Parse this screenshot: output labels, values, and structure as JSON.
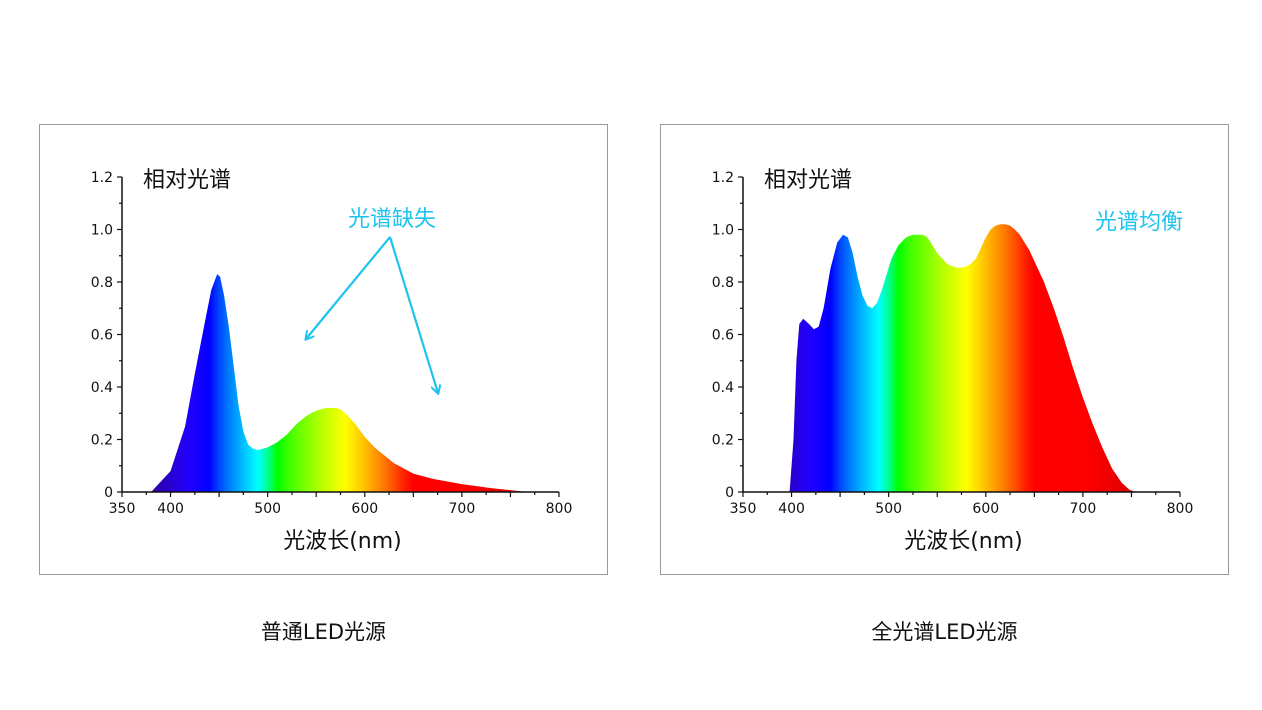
{
  "colors": {
    "annotation": "#1ec3ee",
    "axis": "#111111",
    "frame": "#9a9a9a"
  },
  "chart_data": [
    {
      "type": "area",
      "ylabel": "相对光谱",
      "xlabel": "光波长(nm)",
      "caption": "普通LED光源",
      "annotation": "光谱缺失",
      "annotation_arrows": 2,
      "xlim": [
        350,
        800
      ],
      "ylim": [
        0,
        1.2
      ],
      "xticks": [
        "350",
        "400",
        "500",
        "600",
        "700",
        "800"
      ],
      "xtick_values": [
        350,
        400,
        500,
        600,
        700,
        800
      ],
      "yticks": [
        "0",
        "0.2",
        "0.4",
        "0.6",
        "0.8",
        "1.0",
        "1.2"
      ],
      "ytick_values": [
        0,
        0.2,
        0.4,
        0.6,
        0.8,
        1.0,
        1.2
      ],
      "fill": "wavelength-colour gradient",
      "x": [
        380,
        400,
        415,
        425,
        435,
        442,
        448,
        451,
        455,
        460,
        465,
        470,
        475,
        480,
        485,
        490,
        495,
        500,
        510,
        520,
        530,
        540,
        550,
        560,
        565,
        570,
        575,
        580,
        590,
        600,
        610,
        620,
        630,
        650,
        670,
        700,
        730,
        760,
        775
      ],
      "values": [
        0.0,
        0.08,
        0.25,
        0.45,
        0.64,
        0.77,
        0.83,
        0.82,
        0.75,
        0.63,
        0.48,
        0.33,
        0.23,
        0.18,
        0.165,
        0.16,
        0.165,
        0.17,
        0.19,
        0.22,
        0.26,
        0.29,
        0.31,
        0.32,
        0.32,
        0.32,
        0.315,
        0.3,
        0.26,
        0.21,
        0.17,
        0.14,
        0.11,
        0.07,
        0.05,
        0.03,
        0.015,
        0.003,
        0.0
      ]
    },
    {
      "type": "area",
      "ylabel": "相对光谱",
      "xlabel": "光波长(nm)",
      "caption": "全光谱LED光源",
      "annotation": "光谱均衡",
      "xlim": [
        350,
        800
      ],
      "ylim": [
        0,
        1.2
      ],
      "xticks": [
        "350",
        "400",
        "500",
        "600",
        "700",
        "800"
      ],
      "xtick_values": [
        350,
        400,
        500,
        600,
        700,
        800
      ],
      "yticks": [
        "0",
        "0.2",
        "0.4",
        "0.6",
        "0.8",
        "1.0",
        "1.2"
      ],
      "ytick_values": [
        0,
        0.2,
        0.4,
        0.6,
        0.8,
        1.0,
        1.2
      ],
      "fill": "wavelength-colour gradient",
      "x": [
        398,
        402,
        405,
        408,
        412,
        418,
        423,
        428,
        433,
        440,
        447,
        453,
        458,
        463,
        468,
        473,
        478,
        483,
        488,
        493,
        498,
        503,
        510,
        518,
        525,
        530,
        535,
        540,
        545,
        550,
        555,
        560,
        565,
        570,
        575,
        580,
        585,
        590,
        595,
        600,
        605,
        610,
        615,
        620,
        625,
        630,
        635,
        640,
        645,
        650,
        660,
        670,
        680,
        690,
        700,
        710,
        720,
        730,
        740,
        748,
        755
      ],
      "values": [
        0.0,
        0.2,
        0.5,
        0.64,
        0.66,
        0.64,
        0.62,
        0.63,
        0.7,
        0.85,
        0.95,
        0.98,
        0.97,
        0.91,
        0.82,
        0.75,
        0.71,
        0.7,
        0.72,
        0.77,
        0.83,
        0.89,
        0.94,
        0.97,
        0.98,
        0.98,
        0.98,
        0.97,
        0.94,
        0.91,
        0.89,
        0.87,
        0.86,
        0.855,
        0.855,
        0.86,
        0.87,
        0.89,
        0.93,
        0.97,
        1.0,
        1.015,
        1.02,
        1.02,
        1.015,
        1.0,
        0.98,
        0.95,
        0.92,
        0.88,
        0.8,
        0.7,
        0.59,
        0.47,
        0.36,
        0.26,
        0.17,
        0.09,
        0.035,
        0.008,
        0.0
      ]
    }
  ]
}
